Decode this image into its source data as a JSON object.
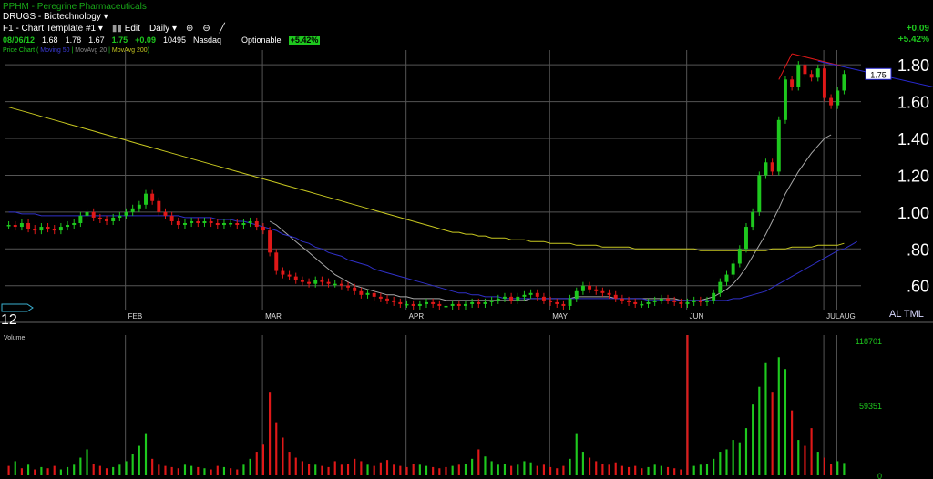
{
  "header": {
    "title": "PPHM - Peregrine Pharmaceuticals",
    "sector": "DRUGS - Biotechnology",
    "template": "F1 - Chart Template #1",
    "edit_label": "Edit",
    "period_label": "Daily",
    "quote": {
      "date": "08/06/12",
      "open": "1.68",
      "high": "1.78",
      "low": "1.67",
      "last": "1.75",
      "change": "+0.09",
      "volume": "10495",
      "exchange": "Nasdaq",
      "optionable": "Optionable",
      "pct_change": "+5.42%"
    },
    "legend": {
      "price": "Price Chart",
      "ma50": "Moving 50",
      "ma20": "MovAvg 20",
      "ma200": "MovAvg 200"
    },
    "top_right_change": "+0.09",
    "top_right_pct": "+5.42%",
    "price_tag": "1.75",
    "bottom_right_labels": "AL TML",
    "left_label": "12"
  },
  "colors": {
    "up": "#1ec81e",
    "down": "#e01818",
    "ma20": "#3030c8",
    "ma50": "#a8a8a8",
    "ma200": "#c8c820",
    "trendline_red": "#e01818",
    "trendline_blue": "#2828d0"
  },
  "chart_data": [
    {
      "type": "candlestick",
      "title": "Price Chart",
      "months": [
        "FEB",
        "MAR",
        "APR",
        "MAY",
        "JUN",
        "JUL",
        "AUG"
      ],
      "ylim": [
        0.47,
        1.88
      ],
      "yticks": [
        "1.80",
        "1.60",
        "1.40",
        "1.20",
        "1.00",
        ".80",
        ".60"
      ],
      "ytick_values": [
        1.8,
        1.6,
        1.4,
        1.2,
        1.0,
        0.8,
        0.6
      ],
      "closes": [
        0.93,
        0.92,
        0.94,
        0.91,
        0.9,
        0.92,
        0.91,
        0.9,
        0.92,
        0.93,
        0.94,
        0.98,
        1.0,
        0.97,
        0.96,
        0.95,
        0.97,
        0.98,
        1.0,
        1.02,
        1.04,
        1.1,
        1.06,
        1.0,
        0.98,
        0.95,
        0.93,
        0.94,
        0.95,
        0.94,
        0.95,
        0.94,
        0.93,
        0.94,
        0.94,
        0.93,
        0.94,
        0.95,
        0.92,
        0.9,
        0.78,
        0.68,
        0.66,
        0.65,
        0.63,
        0.62,
        0.61,
        0.63,
        0.62,
        0.61,
        0.61,
        0.6,
        0.59,
        0.57,
        0.55,
        0.56,
        0.54,
        0.53,
        0.52,
        0.51,
        0.5,
        0.5,
        0.49,
        0.5,
        0.51,
        0.5,
        0.49,
        0.49,
        0.5,
        0.49,
        0.5,
        0.51,
        0.5,
        0.51,
        0.52,
        0.53,
        0.54,
        0.52,
        0.54,
        0.55,
        0.56,
        0.54,
        0.52,
        0.51,
        0.5,
        0.49,
        0.53,
        0.57,
        0.6,
        0.58,
        0.57,
        0.56,
        0.55,
        0.53,
        0.52,
        0.51,
        0.5,
        0.5,
        0.51,
        0.52,
        0.53,
        0.52,
        0.51,
        0.5,
        0.51,
        0.52,
        0.51,
        0.52,
        0.56,
        0.62,
        0.66,
        0.72,
        0.8,
        0.92,
        1.0,
        1.2,
        1.27,
        1.22,
        1.5,
        1.72,
        1.68,
        1.8,
        1.75,
        1.73,
        1.78,
        1.62,
        1.58,
        1.66,
        1.75
      ],
      "series": [
        {
          "name": "Moving 50",
          "values": [
            null,
            null,
            null,
            null,
            null,
            null,
            null,
            null,
            null,
            null,
            null,
            null,
            null,
            null,
            null,
            null,
            null,
            null,
            null,
            null,
            null,
            null,
            null,
            null,
            null,
            null,
            null,
            null,
            null,
            null,
            null,
            null,
            null,
            null,
            null,
            null,
            null,
            null,
            null,
            null,
            0.95,
            0.93,
            0.9,
            0.87,
            0.84,
            0.81,
            0.78,
            0.75,
            0.72,
            0.69,
            0.66,
            0.64,
            0.62,
            0.6,
            0.59,
            0.58,
            0.57,
            0.56,
            0.55,
            0.55,
            0.54,
            0.54,
            0.53,
            0.53,
            0.53,
            0.53,
            0.53,
            0.52,
            0.52,
            0.52,
            0.52,
            0.52,
            0.52,
            0.52,
            0.52,
            0.52,
            0.52,
            0.52,
            0.52,
            0.52,
            0.53,
            0.53,
            0.53,
            0.53,
            0.53,
            0.53,
            0.53,
            0.54,
            0.54,
            0.54,
            0.54,
            0.54,
            0.54,
            0.53,
            0.53,
            0.53,
            0.53,
            0.53,
            0.53,
            0.53,
            0.53,
            0.53,
            0.53,
            0.52,
            0.52,
            0.52,
            0.52,
            0.53,
            0.54,
            0.56,
            0.58,
            0.61,
            0.65,
            0.7,
            0.76,
            0.82,
            0.88,
            0.95,
            1.02,
            1.1,
            1.16,
            1.22,
            1.27,
            1.32,
            1.36,
            1.4,
            1.42
          ]
        },
        {
          "name": "MovAvg 20",
          "values": [
            1.0,
            1.0,
            0.99,
            0.99,
            0.99,
            0.98,
            0.98,
            0.98,
            0.98,
            0.98,
            0.98,
            0.98,
            0.98,
            0.98,
            0.98,
            0.98,
            0.98,
            0.98,
            0.98,
            0.98,
            0.98,
            0.98,
            0.98,
            0.98,
            0.98,
            0.98,
            0.98,
            0.97,
            0.97,
            0.97,
            0.97,
            0.97,
            0.96,
            0.96,
            0.96,
            0.95,
            0.95,
            0.94,
            0.93,
            0.92,
            0.91,
            0.9,
            0.88,
            0.87,
            0.86,
            0.84,
            0.83,
            0.81,
            0.8,
            0.78,
            0.77,
            0.76,
            0.74,
            0.73,
            0.72,
            0.71,
            0.69,
            0.68,
            0.67,
            0.66,
            0.65,
            0.64,
            0.63,
            0.62,
            0.61,
            0.6,
            0.59,
            0.58,
            0.57,
            0.56,
            0.56,
            0.55,
            0.55,
            0.54,
            0.54,
            0.54,
            0.53,
            0.53,
            0.53,
            0.53,
            0.53,
            0.53,
            0.53,
            0.53,
            0.53,
            0.53,
            0.53,
            0.53,
            0.53,
            0.53,
            0.53,
            0.53,
            0.53,
            0.53,
            0.53,
            0.53,
            0.53,
            0.53,
            0.52,
            0.52,
            0.52,
            0.52,
            0.52,
            0.52,
            0.52,
            0.52,
            0.52,
            0.52,
            0.52,
            0.52,
            0.52,
            0.53,
            0.53,
            0.54,
            0.55,
            0.56,
            0.57,
            0.59,
            0.61,
            0.63,
            0.65,
            0.67,
            0.69,
            0.71,
            0.73,
            0.75,
            0.77,
            0.79,
            0.8,
            0.82,
            0.84
          ]
        },
        {
          "name": "MovAvg 200",
          "values": [
            1.57,
            1.56,
            1.55,
            1.54,
            1.53,
            1.52,
            1.51,
            1.5,
            1.49,
            1.48,
            1.47,
            1.46,
            1.45,
            1.44,
            1.43,
            1.42,
            1.41,
            1.4,
            1.39,
            1.38,
            1.37,
            1.36,
            1.35,
            1.34,
            1.33,
            1.32,
            1.31,
            1.3,
            1.29,
            1.28,
            1.27,
            1.26,
            1.25,
            1.24,
            1.23,
            1.22,
            1.21,
            1.2,
            1.19,
            1.18,
            1.17,
            1.16,
            1.15,
            1.14,
            1.13,
            1.12,
            1.11,
            1.1,
            1.09,
            1.08,
            1.07,
            1.06,
            1.05,
            1.04,
            1.03,
            1.02,
            1.01,
            1.0,
            0.99,
            0.98,
            0.97,
            0.96,
            0.95,
            0.94,
            0.93,
            0.92,
            0.91,
            0.9,
            0.89,
            0.89,
            0.88,
            0.88,
            0.87,
            0.87,
            0.86,
            0.86,
            0.86,
            0.85,
            0.85,
            0.85,
            0.84,
            0.84,
            0.84,
            0.83,
            0.83,
            0.83,
            0.83,
            0.82,
            0.82,
            0.82,
            0.82,
            0.81,
            0.81,
            0.81,
            0.81,
            0.81,
            0.8,
            0.8,
            0.8,
            0.8,
            0.8,
            0.8,
            0.8,
            0.8,
            0.8,
            0.8,
            0.79,
            0.79,
            0.79,
            0.79,
            0.79,
            0.79,
            0.79,
            0.79,
            0.79,
            0.79,
            0.79,
            0.8,
            0.8,
            0.8,
            0.81,
            0.81,
            0.81,
            0.81,
            0.82,
            0.82,
            0.82,
            0.82,
            0.83
          ]
        }
      ]
    },
    {
      "type": "bar",
      "title": "Volume",
      "ylim": [
        0,
        118701
      ],
      "yticks": [
        "118701",
        "59351",
        "0"
      ],
      "ytick_values": [
        118701,
        59351,
        0
      ],
      "values": [
        8000,
        12000,
        6000,
        9000,
        5000,
        7000,
        6000,
        8000,
        5000,
        7000,
        9000,
        15000,
        22000,
        10000,
        8000,
        6000,
        7000,
        9000,
        12000,
        18000,
        25000,
        35000,
        14000,
        9000,
        8000,
        7000,
        6000,
        9000,
        8000,
        7000,
        6000,
        5000,
        8000,
        7000,
        6000,
        5000,
        9000,
        14000,
        20000,
        26000,
        70000,
        45000,
        32000,
        20000,
        15000,
        12000,
        10000,
        9000,
        8000,
        7000,
        12000,
        9000,
        10000,
        14000,
        12000,
        9000,
        8000,
        11000,
        13000,
        9000,
        8000,
        7000,
        10000,
        9000,
        8000,
        7000,
        6000,
        7000,
        8000,
        9000,
        10000,
        14000,
        22000,
        16000,
        12000,
        9000,
        10000,
        8000,
        9000,
        12000,
        11000,
        8000,
        9000,
        7000,
        6000,
        8000,
        14000,
        35000,
        20000,
        15000,
        12000,
        10000,
        9000,
        11000,
        8000,
        7000,
        8000,
        6000,
        7000,
        9000,
        8000,
        7000,
        6000,
        5000,
        118701,
        8000,
        9000,
        10000,
        14000,
        20000,
        22000,
        30000,
        28000,
        40000,
        60000,
        75000,
        95000,
        70000,
        100000,
        90000,
        55000,
        30000,
        25000,
        40000,
        20000,
        15000,
        10000,
        12000,
        10495
      ],
      "up": [
        0,
        1,
        0,
        1,
        0,
        1,
        0,
        0,
        1,
        1,
        1,
        1,
        1,
        0,
        0,
        0,
        1,
        1,
        1,
        1,
        1,
        1,
        0,
        0,
        0,
        0,
        0,
        1,
        1,
        0,
        1,
        0,
        0,
        1,
        0,
        0,
        1,
        1,
        0,
        0,
        0,
        0,
        0,
        0,
        0,
        0,
        0,
        1,
        0,
        0,
        0,
        0,
        0,
        0,
        0,
        1,
        0,
        0,
        0,
        0,
        0,
        0,
        0,
        1,
        1,
        0,
        0,
        0,
        1,
        0,
        1,
        1,
        0,
        1,
        1,
        1,
        1,
        0,
        1,
        1,
        1,
        0,
        0,
        0,
        0,
        0,
        1,
        1,
        1,
        0,
        0,
        0,
        0,
        0,
        0,
        0,
        0,
        0,
        1,
        1,
        1,
        0,
        0,
        0,
        0,
        1,
        1,
        1,
        1,
        1,
        1,
        1,
        1,
        1,
        1,
        1,
        1,
        0,
        1,
        1,
        0,
        1,
        0,
        0,
        1,
        0,
        0,
        1,
        1
      ]
    }
  ]
}
